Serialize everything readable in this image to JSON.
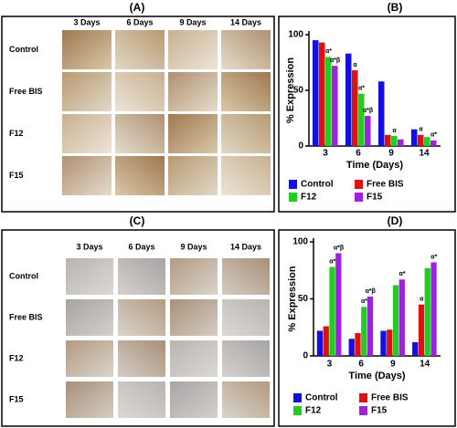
{
  "figure": {
    "panels": [
      "(A)",
      "(B)",
      "(C)",
      "(D)"
    ],
    "micrographs": [
      {
        "columns": [
          "3 Days",
          "6 Days",
          "9 Days",
          "14 Days"
        ],
        "rows": [
          "Control",
          "Free BIS",
          "F12",
          "F15"
        ]
      },
      {
        "columns": [
          "3 Days",
          "6 Days",
          "9 Days",
          "14 Days"
        ],
        "rows": [
          "Control",
          "Free BIS",
          "F12",
          "F15"
        ]
      }
    ]
  },
  "chart_data": [
    {
      "type": "bar",
      "ylabel": "% Expression",
      "xlabel": "Time (Days)",
      "categories": [
        "3",
        "6",
        "9",
        "14"
      ],
      "ylim": [
        0,
        100
      ],
      "yticks": [
        0,
        50,
        100
      ],
      "series": [
        {
          "name": "Control",
          "color": "#1010e0",
          "values": [
            95,
            83,
            58,
            15
          ],
          "annotations": [
            null,
            null,
            null,
            null
          ]
        },
        {
          "name": "Free BIS",
          "color": "#e01010",
          "values": [
            93,
            68,
            10,
            10
          ],
          "annotations": [
            null,
            "α",
            null,
            "α"
          ]
        },
        {
          "name": "F12",
          "color": "#22cc22",
          "values": [
            80,
            47,
            9,
            8
          ],
          "annotations": [
            "α*",
            "α*",
            "α",
            null
          ]
        },
        {
          "name": "F15",
          "color": "#a020e0",
          "values": [
            72,
            27,
            6,
            5
          ],
          "annotations": [
            "α*β",
            "α*β",
            null,
            "α*"
          ]
        }
      ]
    },
    {
      "type": "bar",
      "ylabel": "% Expression",
      "xlabel": "Time (Days)",
      "categories": [
        "3",
        "6",
        "9",
        "14"
      ],
      "ylim": [
        0,
        100
      ],
      "yticks": [
        0,
        50,
        100
      ],
      "series": [
        {
          "name": "Control",
          "color": "#1010e0",
          "values": [
            22,
            15,
            22,
            12
          ],
          "annotations": [
            null,
            null,
            null,
            null
          ]
        },
        {
          "name": "Free BIS",
          "color": "#e01010",
          "values": [
            26,
            20,
            23,
            45
          ],
          "annotations": [
            null,
            null,
            null,
            "α"
          ]
        },
        {
          "name": "F12",
          "color": "#22cc22",
          "values": [
            78,
            43,
            62,
            77
          ],
          "annotations": [
            "α*",
            "α*",
            null,
            null
          ]
        },
        {
          "name": "F15",
          "color": "#a020e0",
          "values": [
            90,
            52,
            67,
            82
          ],
          "annotations": [
            "α*β",
            "α*β",
            "α*",
            "α*"
          ]
        }
      ]
    }
  ]
}
